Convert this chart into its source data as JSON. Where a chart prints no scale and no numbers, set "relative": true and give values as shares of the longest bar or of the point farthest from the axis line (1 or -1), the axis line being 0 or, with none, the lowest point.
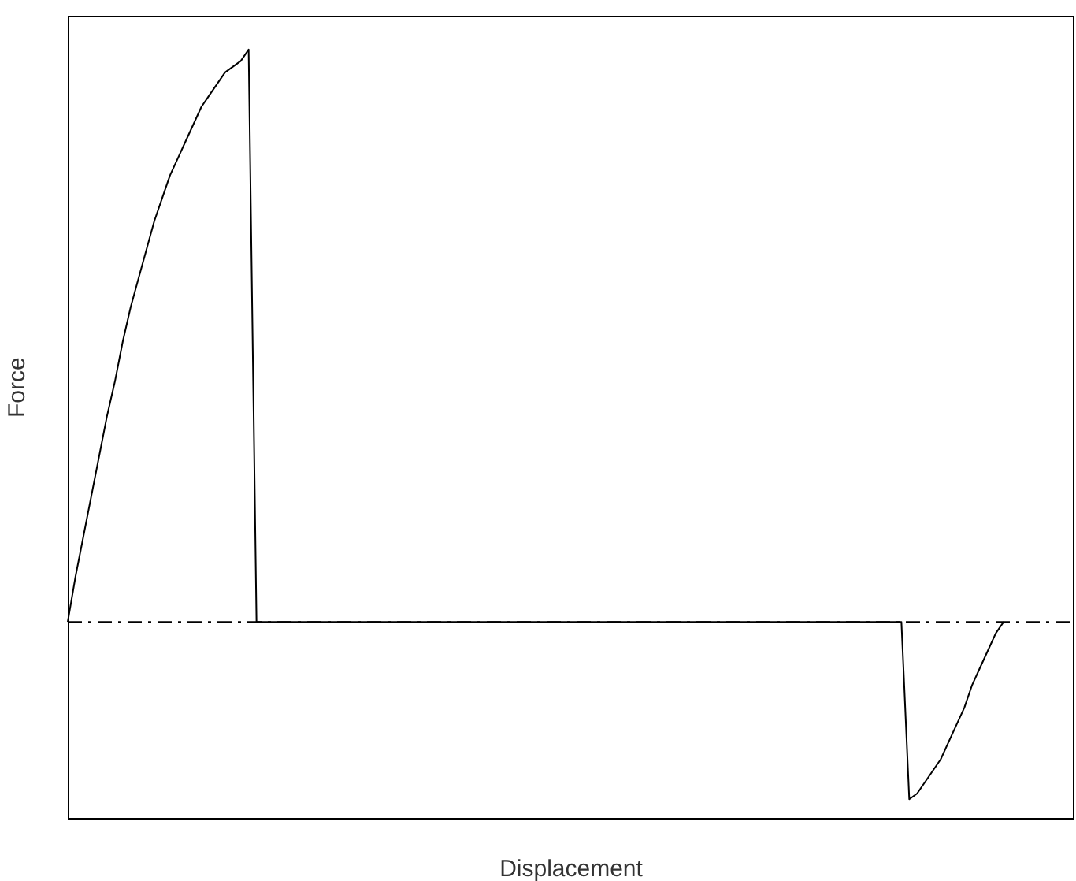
{
  "chart_data": {
    "type": "line",
    "relative": true,
    "xlabel": "Displacement",
    "ylabel": "Force",
    "marker": "none",
    "line_style": "solid",
    "grid": false,
    "legend": false,
    "categories": [
      null,
      null,
      null,
      null,
      null,
      null,
      null,
      null,
      null,
      null,
      null,
      null,
      null,
      null,
      null,
      null,
      null,
      null,
      null,
      null,
      null,
      null,
      null,
      null,
      null,
      null,
      null,
      null,
      null,
      null,
      null,
      null,
      null,
      null,
      null,
      null,
      null,
      null,
      null,
      null,
      null,
      null,
      null,
      null,
      null,
      null,
      null,
      null,
      null,
      null,
      null,
      null,
      null,
      null,
      null,
      null,
      null,
      null,
      null,
      null,
      null,
      null,
      null,
      null,
      null,
      null,
      null,
      null,
      null,
      null,
      null,
      null,
      null,
      null,
      null,
      null,
      null,
      null,
      null,
      null,
      null,
      null,
      null,
      null,
      null,
      null,
      null,
      null,
      null,
      null,
      null,
      null,
      null,
      null,
      null,
      null,
      null,
      null,
      null,
      null,
      null,
      null,
      null,
      null,
      null,
      null,
      null,
      null,
      null,
      null,
      null,
      null,
      null,
      null,
      null,
      null,
      null,
      null,
      null,
      null,
      null,
      null,
      null,
      null,
      null,
      null,
      null,
      null,
      null
    ],
    "series": [
      {
        "color": "#000000",
        "values": [
          0,
          0.08,
          0.15,
          0.22,
          0.29,
          0.36,
          0.42,
          0.49,
          0.55,
          0.6,
          0.65,
          0.7,
          0.74,
          0.78,
          0.81,
          0.84,
          0.87,
          0.9,
          0.92,
          0.94,
          0.96,
          0.97,
          0.98,
          1,
          0,
          0,
          0,
          0,
          0,
          0,
          0,
          0,
          0,
          0,
          0,
          0,
          0,
          0,
          0,
          0,
          0,
          0,
          0,
          0,
          0,
          0,
          0,
          0,
          0,
          0,
          0,
          0,
          0,
          0,
          0,
          0,
          0,
          0,
          0,
          0,
          0,
          0,
          0,
          0,
          0,
          0,
          0,
          0,
          0,
          0,
          0,
          0,
          0,
          0,
          0,
          0,
          0,
          0,
          0,
          0,
          0,
          0,
          0,
          0,
          0,
          0,
          0,
          0,
          0,
          0,
          0,
          0,
          0,
          0,
          0,
          0,
          0,
          0,
          0,
          0,
          0,
          0,
          0,
          0,
          0,
          0,
          0,
          -0.31,
          -0.3,
          -0.28,
          -0.26,
          -0.24,
          -0.21,
          -0.18,
          -0.15,
          -0.11,
          -0.08,
          -0.05,
          -0.02,
          0,
          null,
          null,
          null,
          null,
          null,
          null,
          null,
          null,
          null
        ]
      }
    ],
    "ref_lines": [
      {
        "axis": "y",
        "value": 0,
        "color": "#000000",
        "line_style": "dashed"
      }
    ]
  }
}
